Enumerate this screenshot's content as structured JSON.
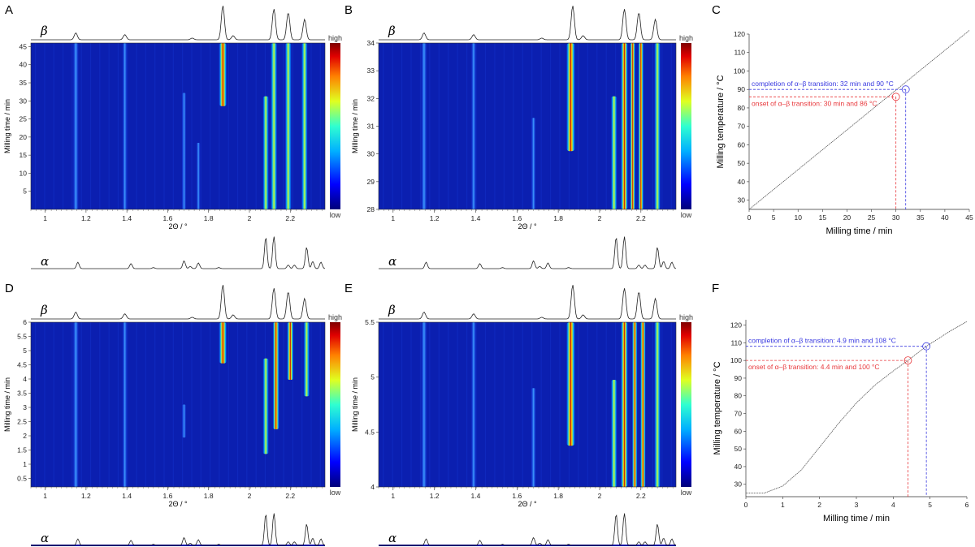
{
  "colors": {
    "annot_red": "#e8383c",
    "annot_blue": "#3a3ae0",
    "curve": "#444444",
    "heat_low": "#00007a",
    "heat_high": "#800000"
  },
  "labels": {
    "phase_beta": "β",
    "phase_alpha": "α",
    "cb_high": "high",
    "cb_low": "low"
  },
  "chart_data": [
    {
      "panel": "A",
      "type": "heatmap",
      "xlabel": "2Θ / °",
      "ylabel": "Milling time / min",
      "xlim": [
        0.93,
        2.37
      ],
      "ylim": [
        0,
        46
      ],
      "xticks": [
        "1",
        "1.2",
        "1.4",
        "1.6",
        "1.8",
        "2",
        "2.2"
      ],
      "yticks": [
        "5",
        "10",
        "15",
        "20",
        "25",
        "30",
        "35",
        "40",
        "45"
      ],
      "colorbar": [
        "high",
        "low"
      ]
    },
    {
      "panel": "B",
      "type": "heatmap",
      "xlabel": "2Θ / °",
      "ylabel": "Milling time / min",
      "xlim": [
        0.93,
        2.37
      ],
      "ylim": [
        28,
        34
      ],
      "xticks": [
        "1",
        "1.2",
        "1.4",
        "1.6",
        "1.8",
        "2",
        "2.2"
      ],
      "yticks": [
        "28",
        "29",
        "30",
        "31",
        "32",
        "33",
        "34"
      ],
      "colorbar": [
        "high",
        "low"
      ]
    },
    {
      "panel": "C",
      "type": "line",
      "xlabel": "Milling time / min",
      "ylabel": "Milling temperature / °C",
      "xlim": [
        0,
        45
      ],
      "ylim": [
        25,
        120
      ],
      "xticks": [
        "0",
        "5",
        "10",
        "15",
        "20",
        "25",
        "30",
        "35",
        "40",
        "45"
      ],
      "yticks": [
        "30",
        "40",
        "50",
        "60",
        "70",
        "80",
        "90",
        "100",
        "110",
        "120"
      ],
      "x": [
        0,
        45
      ],
      "y": [
        25,
        122
      ],
      "annotations": {
        "onset": {
          "text": "onset of α–β transition: 30 min and 86 °C",
          "x": 30,
          "y": 86
        },
        "completion": {
          "text": "completion of α–β transition: 32 min and 90 °C",
          "x": 32,
          "y": 90
        }
      }
    },
    {
      "panel": "D",
      "type": "heatmap",
      "xlabel": "2Θ / °",
      "ylabel": "Milling time / min",
      "xlim": [
        0.93,
        2.37
      ],
      "ylim": [
        0.2,
        6
      ],
      "xticks": [
        "1",
        "1.2",
        "1.4",
        "1.6",
        "1.8",
        "2",
        "2.2"
      ],
      "yticks": [
        "0.5",
        "1",
        "1.5",
        "2",
        "2.5",
        "3",
        "3.5",
        "4",
        "4.5",
        "5",
        "5.5",
        "6"
      ],
      "colorbar": [
        "high",
        "low"
      ]
    },
    {
      "panel": "E",
      "type": "heatmap",
      "xlabel": "2Θ / °",
      "ylabel": "Milling time / min",
      "xlim": [
        0.93,
        2.37
      ],
      "ylim": [
        4,
        5.5
      ],
      "xticks": [
        "1",
        "1.2",
        "1.4",
        "1.6",
        "1.8",
        "2",
        "2.2"
      ],
      "yticks": [
        "4",
        "4.5",
        "5",
        "5.5"
      ],
      "colorbar": [
        "high",
        "low"
      ]
    },
    {
      "panel": "F",
      "type": "line",
      "xlabel": "Milling time / min",
      "ylabel": "Milling temperature / °C",
      "xlim": [
        0,
        6
      ],
      "ylim": [
        23,
        123
      ],
      "xticks": [
        "0",
        "1",
        "2",
        "3",
        "4",
        "5",
        "6"
      ],
      "yticks": [
        "30",
        "40",
        "50",
        "60",
        "70",
        "80",
        "90",
        "100",
        "110",
        "120"
      ],
      "x": [
        0,
        0.5,
        1,
        1.5,
        2,
        2.5,
        3,
        3.5,
        4,
        4.4,
        4.9,
        5.5,
        6
      ],
      "y": [
        25,
        25,
        29,
        38,
        51,
        64,
        76,
        86,
        94,
        100,
        108,
        116,
        122
      ],
      "annotations": {
        "onset": {
          "text": "onset of α–β transition: 4.4 min and 100 °C",
          "x": 4.4,
          "y": 100
        },
        "completion": {
          "text": "completion of α–β transition: 4.9 min and 108 °C",
          "x": 4.9,
          "y": 108
        }
      }
    }
  ]
}
